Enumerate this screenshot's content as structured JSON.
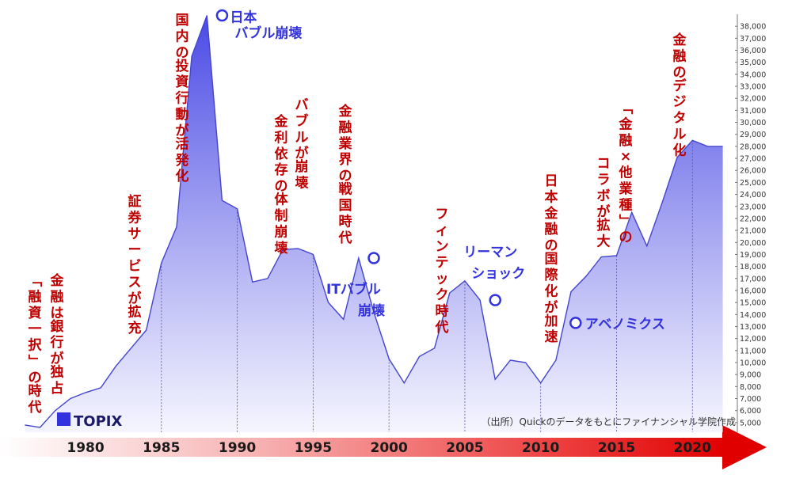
{
  "chart_data": {
    "type": "area",
    "legend": {
      "label": "TOPIX",
      "color": "#3333dd",
      "position": "bottom-left"
    },
    "source": "（出所）Quickのデータをもとにファイナンシャル学院作成",
    "y_axis": {
      "position": "right",
      "ylim": [
        4200,
        39000
      ],
      "min_tick": 5000,
      "max_tick": 38000,
      "step": 1000
    },
    "x_axis": {
      "xlim": [
        1975.3,
        2022.7
      ],
      "ticks": [
        1980,
        1985,
        1990,
        1995,
        2000,
        2005,
        2010,
        2015,
        2020
      ]
    },
    "series": [
      {
        "values_description": "TOPIX",
        "x": [
          1976,
          1977,
          1978,
          1979,
          1980,
          1981,
          1982,
          1983,
          1984,
          1985,
          1986,
          1987,
          1988,
          1989,
          1990,
          1991,
          1992,
          1993,
          1994,
          1995,
          1996,
          1997,
          1998,
          1999,
          2000,
          2001,
          2002,
          2003,
          2004,
          2005,
          2006,
          2007,
          2008,
          2009,
          2010,
          2011,
          2012,
          2013,
          2014,
          2015,
          2016,
          2017,
          2018,
          2019,
          2020,
          2021,
          2022
        ],
        "y": [
          4800,
          4600,
          6000,
          7000,
          7500,
          7900,
          9700,
          11200,
          12700,
          18300,
          21300,
          35500,
          38900,
          23500,
          22800,
          16700,
          17000,
          19400,
          19500,
          19000,
          15000,
          13600,
          18700,
          14200,
          10300,
          8300,
          10500,
          11200,
          15800,
          16800,
          15200,
          8600,
          10200,
          10000,
          8300,
          10200,
          15900,
          17200,
          18800,
          18900,
          22500,
          19700,
          23300,
          27100,
          28500,
          28000,
          28000
        ]
      }
    ],
    "markers": [
      {
        "x": 1989,
        "y": 38900,
        "label_lines": [
          "日本",
          "バブル崩壊"
        ]
      },
      {
        "x": 1999,
        "y": 18700,
        "label_lines": [
          "ITバブル",
          "崩壊"
        ]
      },
      {
        "x": 2007,
        "y": 15200,
        "label_lines": [
          "リーマン",
          "ショック"
        ]
      },
      {
        "x": 2012.3,
        "y": 13300,
        "label_lines": [
          "アベノミクス"
        ]
      }
    ],
    "annotations": [
      {
        "x": 1980.5,
        "lines": [
          "金融は銀行が独占",
          "「融資一択」の時代"
        ],
        "anchor_y": 8000
      },
      {
        "x": 1985.0,
        "lines": [
          "証券サービスが拡充"
        ],
        "anchor_y": 13000
      },
      {
        "x": 1990.0,
        "lines": [
          "国内の投資行動が活発化"
        ],
        "anchor_y": 23500
      },
      {
        "x": 1995.0,
        "lines": [
          "バブルが崩壊",
          "金利依存の体制崩壊"
        ],
        "anchor_y": 19000
      },
      {
        "x": 2000.0,
        "lines": [
          "金融業界の戦国時代"
        ],
        "anchor_y": 13000
      },
      {
        "x": 2005.0,
        "lines": [
          "フィンテック時代"
        ],
        "anchor_y": 16800
      },
      {
        "x": 2010.0,
        "lines": [
          "日本金融の国際化が加速"
        ],
        "anchor_y": 10000
      },
      {
        "x": 2015.0,
        "lines": [
          "「金融×他業種」の",
          "コラボが拡大"
        ],
        "anchor_y": 18800
      },
      {
        "x": 2020.0,
        "lines": [
          "金融のデジタル化"
        ],
        "anchor_y": 28000
      }
    ]
  }
}
